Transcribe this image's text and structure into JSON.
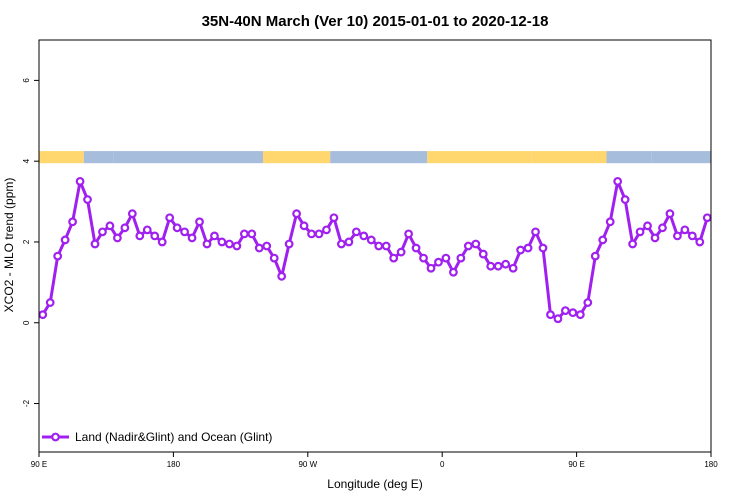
{
  "chart_data": {
    "type": "line",
    "title": "35N-40N March (Ver 10)   2015-01-01 to 2020-12-18",
    "xlabel": "Longitude (deg E)",
    "ylabel": "XCO2 - MLO trend (ppm)",
    "xlim": [
      90,
      540
    ],
    "ylim": [
      -3.2,
      7.0
    ],
    "xticks": [
      {
        "value": 90,
        "label": "90 E"
      },
      {
        "value": 180,
        "label": "180"
      },
      {
        "value": 270,
        "label": "90 W"
      },
      {
        "value": 360,
        "label": "0"
      },
      {
        "value": 450,
        "label": "90 E"
      },
      {
        "value": 540,
        "label": "180"
      }
    ],
    "yticks": [
      {
        "value": -2,
        "label": "-2"
      },
      {
        "value": 0,
        "label": "0"
      },
      {
        "value": 2,
        "label": "2"
      },
      {
        "value": 4,
        "label": "4"
      },
      {
        "value": 6,
        "label": "6"
      }
    ],
    "grid": false,
    "legend_position": "bottom-left",
    "colors": {
      "series": "#a020f0",
      "land": "#ffd76e",
      "ocean": "#a6bddb"
    },
    "surface_strip": {
      "y_range": [
        3.95,
        4.25
      ],
      "segments": [
        {
          "x0": 90,
          "x1": 120,
          "surface": "land"
        },
        {
          "x0": 120,
          "x1": 140,
          "surface": "ocean"
        },
        {
          "x0": 140,
          "x1": 240,
          "surface": "ocean"
        },
        {
          "x0": 240,
          "x1": 285,
          "surface": "land"
        },
        {
          "x0": 285,
          "x1": 350,
          "surface": "ocean"
        },
        {
          "x0": 350,
          "x1": 390,
          "surface": "land"
        },
        {
          "x0": 390,
          "x1": 420,
          "surface": "land"
        },
        {
          "x0": 420,
          "x1": 470,
          "surface": "land"
        },
        {
          "x0": 470,
          "x1": 500,
          "surface": "ocean"
        },
        {
          "x0": 500,
          "x1": 540,
          "surface": "ocean"
        }
      ]
    },
    "series": [
      {
        "name": "Land (Nadir&Glint) and Ocean (Glint)",
        "x": [
          92.5,
          97.5,
          102.5,
          107.5,
          112.5,
          117.5,
          122.5,
          127.5,
          132.5,
          137.5,
          142.5,
          147.5,
          152.5,
          157.5,
          162.5,
          167.5,
          172.5,
          177.5,
          182.5,
          187.5,
          192.5,
          197.5,
          202.5,
          207.5,
          212.5,
          217.5,
          222.5,
          227.5,
          232.5,
          237.5,
          242.5,
          247.5,
          252.5,
          257.5,
          262.5,
          267.5,
          272.5,
          277.5,
          282.5,
          287.5,
          292.5,
          297.5,
          302.5,
          307.5,
          312.5,
          317.5,
          322.5,
          327.5,
          332.5,
          337.5,
          342.5,
          347.5,
          352.5,
          357.5,
          362.5,
          367.5,
          372.5,
          377.5,
          382.5,
          387.5,
          392.5,
          397.5,
          402.5,
          407.5,
          412.5,
          417.5,
          422.5,
          427.5,
          432.5,
          437.5,
          442.5,
          447.5,
          452.5,
          457.5,
          462.5,
          467.5,
          472.5,
          477.5,
          482.5,
          487.5,
          492.5,
          497.5,
          502.5,
          507.5,
          512.5,
          517.5,
          522.5,
          527.5,
          532.5,
          537.5
        ],
        "y": [
          0.2,
          0.5,
          1.65,
          2.05,
          2.5,
          3.5,
          3.05,
          1.95,
          2.25,
          2.4,
          2.1,
          2.35,
          2.7,
          2.15,
          2.3,
          2.15,
          2.0,
          2.6,
          2.35,
          2.25,
          2.1,
          2.5,
          1.95,
          2.15,
          2.0,
          1.95,
          1.9,
          2.2,
          2.2,
          1.85,
          1.9,
          1.6,
          1.15,
          1.95,
          2.7,
          2.4,
          2.2,
          2.2,
          2.3,
          2.6,
          1.95,
          2.0,
          2.25,
          2.15,
          2.05,
          1.9,
          1.9,
          1.6,
          1.75,
          2.2,
          1.85,
          1.6,
          1.35,
          1.5,
          1.6,
          1.25,
          1.6,
          1.9,
          1.95,
          1.7,
          1.4,
          1.4,
          1.45,
          1.35,
          1.8,
          1.85,
          2.25,
          1.85,
          0.2,
          0.1,
          0.3,
          0.25,
          0.2,
          0.5,
          1.65,
          2.05,
          2.5,
          3.5,
          3.05,
          1.95,
          2.25,
          2.4,
          2.1,
          2.35,
          2.7,
          2.15,
          2.3,
          2.15,
          2.0,
          2.6
        ]
      }
    ]
  }
}
